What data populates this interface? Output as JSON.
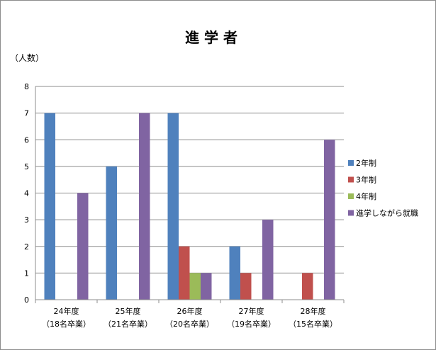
{
  "chart_data": {
    "type": "bar",
    "title": "進 学 者",
    "ylabel": "（人数）",
    "xlabel": "",
    "ylim": [
      0,
      8
    ],
    "yticks": [
      0,
      1,
      2,
      3,
      4,
      5,
      6,
      7,
      8
    ],
    "grid": true,
    "legend_position": "right",
    "categories": [
      {
        "year": "24年度",
        "grads": "（18名卒業）"
      },
      {
        "year": "25年度",
        "grads": "（21名卒業）"
      },
      {
        "year": "26年度",
        "grads": "（20名卒業）"
      },
      {
        "year": "27年度",
        "grads": "（19名卒業）"
      },
      {
        "year": "28年度",
        "grads": "（15名卒業）"
      }
    ],
    "series": [
      {
        "name": "2年制",
        "color": "#4f81bd",
        "values": [
          7,
          5,
          7,
          2,
          0
        ]
      },
      {
        "name": "3年制",
        "color": "#c0504d",
        "values": [
          0,
          0,
          2,
          1,
          1
        ]
      },
      {
        "name": "4年制",
        "color": "#9bbb59",
        "values": [
          0,
          0,
          1,
          0,
          0
        ]
      },
      {
        "name": "進学しながら就職",
        "color": "#8064a2",
        "values": [
          4,
          7,
          1,
          3,
          6
        ]
      }
    ]
  }
}
